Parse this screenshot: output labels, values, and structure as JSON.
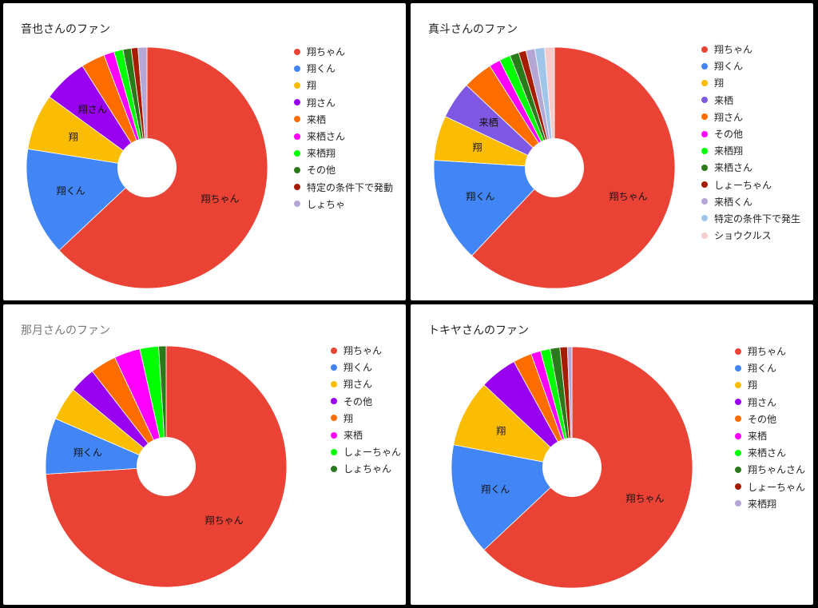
{
  "chart_data": [
    {
      "type": "pie",
      "title": "音也さんのファン",
      "categories": [
        "翔ちゃん",
        "翔くん",
        "翔",
        "翔さん",
        "来栖",
        "来栖さん",
        "来栖翔",
        "その他",
        "特定の条件下で発動",
        "しょちゃ"
      ],
      "values": [
        63.0,
        14.5,
        7.5,
        6.0,
        3.2,
        1.4,
        1.2,
        1.1,
        0.9,
        1.2
      ],
      "colors": [
        "#ea4335",
        "#4285f4",
        "#fbbc04",
        "#9900ef",
        "#ff6d01",
        "#ff00ff",
        "#00ff00",
        "#2a7a1b",
        "#a61c00",
        "#b4a7d6"
      ],
      "slice_labels": [
        "翔ちゃん",
        "翔くん",
        "翔",
        "翔さん",
        "",
        "",
        "",
        "",
        "",
        ""
      ],
      "legend_position": "right"
    },
    {
      "type": "pie",
      "title": "真斗さんのファン",
      "categories": [
        "翔ちゃん",
        "翔くん",
        "翔",
        "来栖",
        "翔さん",
        "その他",
        "来栖翔",
        "来栖さん",
        "しょーちゃん",
        "来栖くん",
        "特定の条件下で発生",
        "ショウクルス"
      ],
      "values": [
        62.0,
        14.0,
        6.0,
        5.0,
        4.0,
        1.5,
        1.5,
        1.2,
        1.0,
        1.2,
        1.3,
        1.3
      ],
      "colors": [
        "#ea4335",
        "#4285f4",
        "#fbbc04",
        "#7e57e2",
        "#ff6d01",
        "#ff00ff",
        "#00ff00",
        "#2a7a1b",
        "#a61c00",
        "#b4a7d6",
        "#9fc5e8",
        "#f4cccc"
      ],
      "slice_labels": [
        "翔ちゃん",
        "翔くん",
        "翔",
        "来栖",
        "",
        "",
        "",
        "",
        "",
        "",
        "",
        ""
      ],
      "legend_position": "right"
    },
    {
      "type": "pie",
      "title": "那月さんのファン",
      "categories": [
        "翔ちゃん",
        "翔くん",
        "翔さん",
        "その他",
        "翔",
        "来栖",
        "しょーちゃん",
        "しょちゃん"
      ],
      "values": [
        74.0,
        7.5,
        4.5,
        3.5,
        3.5,
        3.5,
        2.5,
        1.0
      ],
      "colors": [
        "#ea4335",
        "#4285f4",
        "#fbbc04",
        "#9900ef",
        "#ff6d01",
        "#ff00ff",
        "#00ff00",
        "#2a7a1b"
      ],
      "slice_labels": [
        "翔ちゃん",
        "翔くん",
        "",
        "",
        "",
        "",
        "",
        ""
      ],
      "legend_position": "right"
    },
    {
      "type": "pie",
      "title": "トキヤさんのファン",
      "categories": [
        "翔ちゃん",
        "翔くん",
        "翔",
        "翔さん",
        "その他",
        "来栖",
        "来栖さん",
        "翔ちゃんさん",
        "しょーちゃん",
        "来栖翔"
      ],
      "values": [
        63.0,
        15.0,
        9.0,
        5.0,
        2.5,
        1.3,
        1.3,
        1.3,
        1.0,
        0.6
      ],
      "colors": [
        "#ea4335",
        "#4285f4",
        "#fbbc04",
        "#9900ef",
        "#ff6d01",
        "#ff00ff",
        "#00ff00",
        "#2a7a1b",
        "#a61c00",
        "#b4a7d6"
      ],
      "slice_labels": [
        "翔ちゃん",
        "翔くん",
        "翔",
        "",
        "",
        "",
        "",
        "",
        "",
        ""
      ],
      "legend_position": "right"
    }
  ]
}
